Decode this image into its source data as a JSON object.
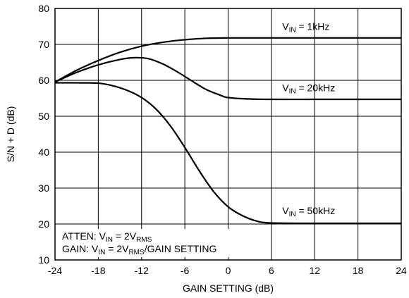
{
  "chart_data": {
    "type": "line",
    "xlabel": "GAIN SETTING (dB)",
    "ylabel": "S/N + D (dB)",
    "xlim": [
      -24,
      24
    ],
    "ylim": [
      10,
      80
    ],
    "xticks": [
      -24,
      -18,
      -12,
      -6,
      0,
      6,
      12,
      18,
      24
    ],
    "yticks": [
      10,
      20,
      30,
      40,
      50,
      60,
      70,
      80
    ],
    "grid": true,
    "series": [
      {
        "name": "1kHz",
        "label_prefix": "V",
        "label_sub": "IN",
        "label_suffix": " = 1kHz",
        "x": [
          -24,
          -21,
          -18,
          -15,
          -12,
          -9,
          -6,
          -3,
          0,
          6,
          12,
          18,
          24
        ],
        "y": [
          59.5,
          62.8,
          65.5,
          67.8,
          69.5,
          70.6,
          71.3,
          71.7,
          71.8,
          71.8,
          71.8,
          71.8,
          71.8
        ]
      },
      {
        "name": "20kHz",
        "label_prefix": "V",
        "label_sub": "IN",
        "label_suffix": " = 20kHz",
        "x": [
          -24,
          -21,
          -18,
          -15,
          -13,
          -11,
          -9,
          -7,
          -5,
          -3,
          -1,
          0,
          3,
          6,
          12,
          18,
          24
        ],
        "y": [
          59.5,
          62.2,
          64.3,
          65.8,
          66.3,
          66.0,
          64.5,
          62.3,
          59.8,
          57.4,
          55.8,
          55.2,
          54.8,
          54.7,
          54.7,
          54.7,
          54.7
        ]
      },
      {
        "name": "50kHz",
        "label_prefix": "V",
        "label_sub": "IN",
        "label_suffix": " = 50kHz",
        "x": [
          -24,
          -21,
          -18,
          -16,
          -14,
          -12,
          -10,
          -8,
          -6,
          -4,
          -2,
          0,
          2,
          4,
          6,
          12,
          18,
          24
        ],
        "y": [
          59.3,
          59.3,
          59.2,
          58.5,
          57.2,
          55.2,
          52.0,
          47.3,
          41.3,
          34.8,
          29.0,
          24.8,
          22.3,
          20.8,
          20.3,
          20.2,
          20.2,
          20.2
        ]
      }
    ],
    "annotations": [
      {
        "prefix": "ATTEN: V",
        "sub": "IN",
        "mid": " = 2V",
        "sub2": "RMS",
        "suffix": ""
      },
      {
        "prefix": "GAIN: V",
        "sub": "IN",
        "mid": " = 2V",
        "sub2": "RMS",
        "suffix": "/GAIN SETTING"
      }
    ]
  }
}
